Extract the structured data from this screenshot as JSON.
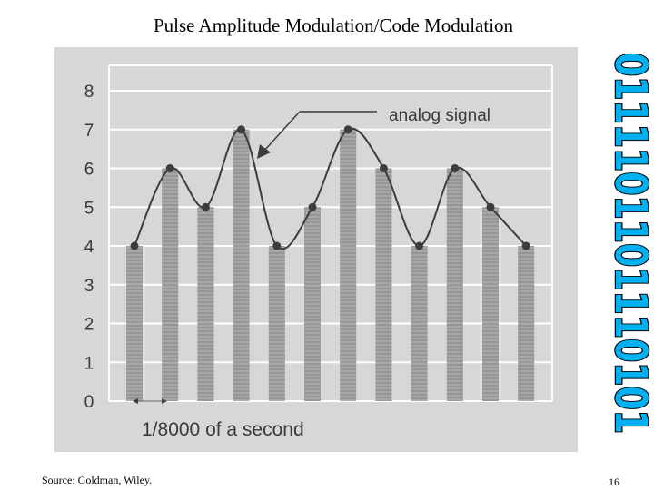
{
  "slide": {
    "title": "Pulse Amplitude Modulation/Code Modulation",
    "source": "Source: Goldman, Wiley.",
    "page_number": "16",
    "binary_code": "0111101101110101",
    "binary_fill": "#00b0f0",
    "binary_stroke": "#000000"
  },
  "chart_data": {
    "type": "bar",
    "title": "",
    "xlabel": "1/8000 of a second",
    "ylabel": "",
    "ylim": [
      0,
      8
    ],
    "yticks": [
      "0",
      "1",
      "2",
      "3",
      "4",
      "5",
      "6",
      "7",
      "8"
    ],
    "grid": true,
    "annotation": "analog signal",
    "sample_values": [
      4,
      6,
      5,
      7,
      4,
      5,
      7,
      6,
      4,
      6,
      5,
      4
    ],
    "colors": {
      "background": "#d7d7d7",
      "bars": "#8a8a8a",
      "curve": "#3c3c3c",
      "grid": "#ffffff",
      "text": "#3a3a3a"
    }
  }
}
